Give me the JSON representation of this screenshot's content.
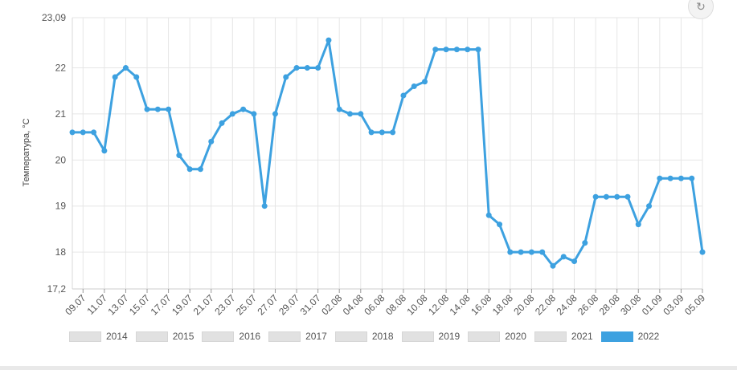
{
  "chart_data": {
    "type": "line",
    "ylabel": "Температура, °С",
    "ylim": [
      17.2,
      23.09
    ],
    "y_ticks": [
      "23,09",
      "22",
      "21",
      "20",
      "19",
      "18",
      "17,2"
    ],
    "y_tick_values": [
      23.09,
      22,
      21,
      20,
      19,
      18,
      17.2
    ],
    "x_tick_labels": [
      "09.07",
      "11.07",
      "13.07",
      "15.07",
      "17.07",
      "19.07",
      "21.07",
      "23.07",
      "25.07",
      "27.07",
      "29.07",
      "31.07",
      "02.08",
      "04.08",
      "06.08",
      "08.08",
      "10.08",
      "12.08",
      "14.08",
      "16.08",
      "18.08",
      "20.08",
      "22.08",
      "24.08",
      "26.08",
      "28.08",
      "30.08",
      "01.09",
      "03.09",
      "05.09"
    ],
    "grid": true,
    "series": [
      {
        "name": "2022",
        "values": [
          20.6,
          20.6,
          20.6,
          20.2,
          21.8,
          22.0,
          21.8,
          21.1,
          21.1,
          21.1,
          20.1,
          19.8,
          19.8,
          20.4,
          20.8,
          21.0,
          21.1,
          21.0,
          19.0,
          21.0,
          21.8,
          22.0,
          22.0,
          22.0,
          22.6,
          21.1,
          21.0,
          21.0,
          20.6,
          20.6,
          20.6,
          21.4,
          21.6,
          21.7,
          22.4,
          22.4,
          22.4,
          22.4,
          22.4,
          18.8,
          18.6,
          18.0,
          18.0,
          18.0,
          18.0,
          17.7,
          17.9,
          17.8,
          18.2,
          19.2,
          19.2,
          19.2,
          19.2,
          18.6,
          19.0,
          19.6,
          19.6,
          19.6,
          19.6,
          18.0
        ]
      }
    ],
    "legend": {
      "placement": "bottom-left",
      "items": [
        {
          "label": "2014",
          "active": false
        },
        {
          "label": "2015",
          "active": false
        },
        {
          "label": "2016",
          "active": false
        },
        {
          "label": "2017",
          "active": false
        },
        {
          "label": "2018",
          "active": false
        },
        {
          "label": "2019",
          "active": false
        },
        {
          "label": "2020",
          "active": false
        },
        {
          "label": "2021",
          "active": false
        },
        {
          "label": "2022",
          "active": true
        }
      ]
    },
    "colors": {
      "series": "#3da1e0",
      "inactive": "#e1e1e1"
    }
  },
  "icons": {
    "reset": "reset-zoom-icon"
  }
}
